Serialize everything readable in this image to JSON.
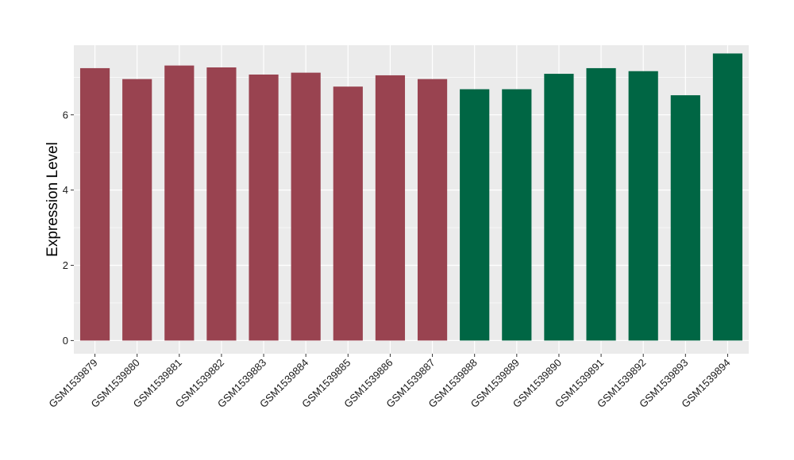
{
  "chart_data": {
    "type": "bar",
    "title": "",
    "xlabel": "",
    "ylabel": "Expression Level",
    "ylim": [
      -0.35,
      7.85
    ],
    "yticks": [
      0,
      2,
      4,
      6
    ],
    "grid": true,
    "legend": "none",
    "panel_background": "#ebebeb",
    "grid_color": "#ffffff",
    "categories": [
      "GSM1539879",
      "GSM1539880",
      "GSM1539881",
      "GSM1539882",
      "GSM1539883",
      "GSM1539884",
      "GSM1539885",
      "GSM1539886",
      "GSM1539887",
      "GSM1539888",
      "GSM1539889",
      "GSM1539890",
      "GSM1539891",
      "GSM1539892",
      "GSM1539893",
      "GSM1539894"
    ],
    "values": [
      7.24,
      6.95,
      7.31,
      7.26,
      7.07,
      7.12,
      6.75,
      7.05,
      6.95,
      6.68,
      6.68,
      7.09,
      7.24,
      7.16,
      6.52,
      7.63
    ],
    "bar_colors": [
      "#994350",
      "#994350",
      "#994350",
      "#994350",
      "#994350",
      "#994350",
      "#994350",
      "#994350",
      "#994350",
      "#006644",
      "#006644",
      "#006644",
      "#006644",
      "#006644",
      "#006644",
      "#006644"
    ]
  }
}
